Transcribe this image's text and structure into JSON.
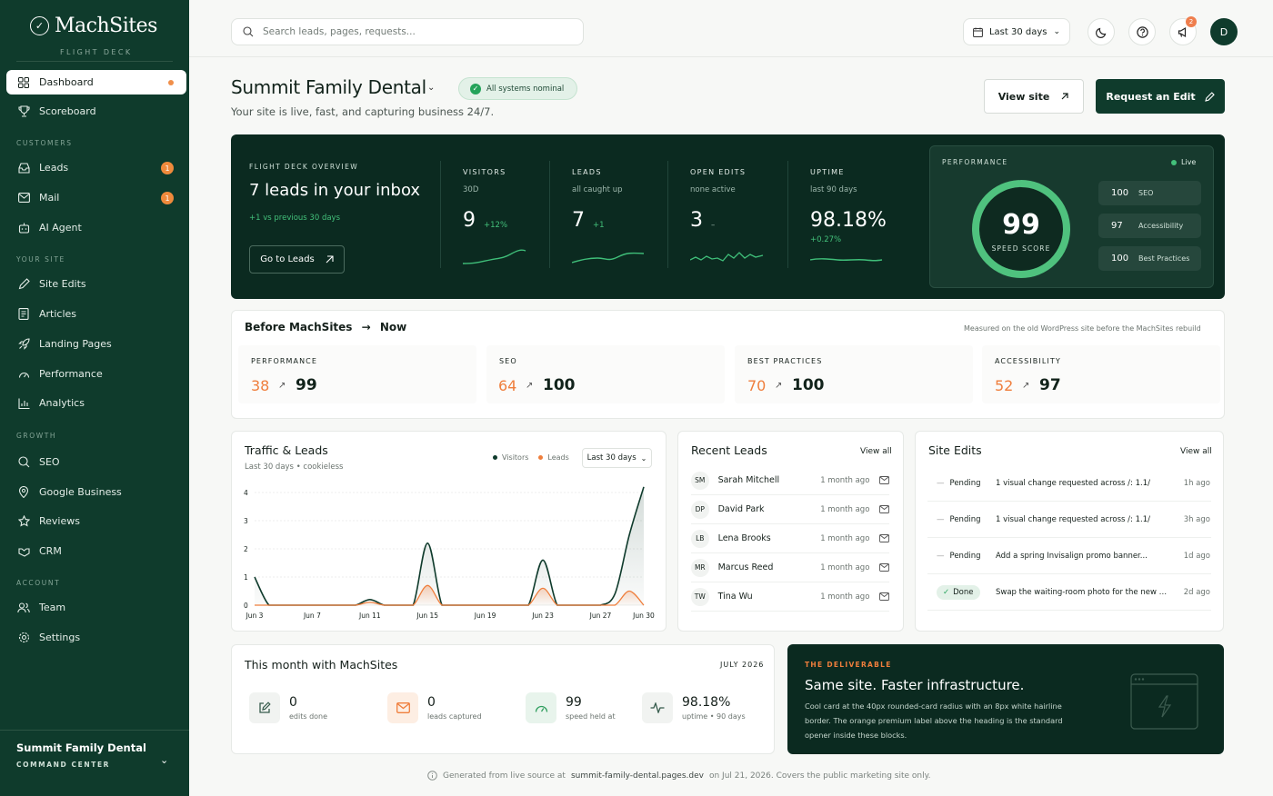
{
  "brand": {
    "name": "MachSites",
    "subtitle": "FLIGHT DECK"
  },
  "sidebar": {
    "items": [
      {
        "label": "Dashboard",
        "icon": "grid-icon"
      },
      {
        "label": "Scoreboard",
        "icon": "trophy-icon"
      },
      {
        "label": "Leads",
        "icon": "inbox-icon",
        "badge": "1"
      },
      {
        "label": "Mail",
        "icon": "mail-icon",
        "badge": "1"
      },
      {
        "label": "AI Agent",
        "icon": "bot-icon"
      },
      {
        "label": "Site Edits",
        "icon": "pencil-icon"
      },
      {
        "label": "Articles",
        "icon": "document-icon"
      },
      {
        "label": "Landing Pages",
        "icon": "rocket-icon"
      },
      {
        "label": "Performance",
        "icon": "gauge-icon"
      },
      {
        "label": "Analytics",
        "icon": "bar-chart-icon"
      },
      {
        "label": "SEO",
        "icon": "search-icon"
      },
      {
        "label": "Google Business",
        "icon": "location-pin-icon"
      },
      {
        "label": "Reviews",
        "icon": "star-icon"
      },
      {
        "label": "CRM",
        "icon": "handshake-icon"
      },
      {
        "label": "Team",
        "icon": "users-icon"
      },
      {
        "label": "Settings",
        "icon": "gear-icon"
      }
    ],
    "sections": {
      "customers": "CUSTOMERS",
      "your_site": "YOUR SITE",
      "growth": "GROWTH",
      "account": "ACCOUNT"
    },
    "footer": {
      "title": "Summit Family Dental",
      "subtitle": "COMMAND CENTER"
    }
  },
  "topbar": {
    "search_placeholder": "Search leads, pages, requests...",
    "range": "Last 30 days",
    "notifications": "2",
    "avatar": "D"
  },
  "header": {
    "title": "Summit Family Dental",
    "status": "All systems nominal",
    "subtitle": "Your site is live, fast, and capturing business 24/7.",
    "view_site": "View site",
    "request_edit": "Request an Edit"
  },
  "overview": {
    "label": "FLIGHT DECK OVERVIEW",
    "headline": "7 leads in your inbox",
    "delta": "+1 vs previous 30 days",
    "button": "Go to Leads",
    "stats": [
      {
        "title": "VISITORS",
        "sub": "30D",
        "value": "9",
        "delta": "+12%"
      },
      {
        "title": "LEADS",
        "sub": "all caught up",
        "value": "7",
        "delta": "+1"
      },
      {
        "title": "OPEN EDITS",
        "sub": "none active",
        "value": "3",
        "delta": "–"
      },
      {
        "title": "UPTIME",
        "sub": "last 90 days",
        "value": "98.18%",
        "delta": "+0.27%"
      }
    ],
    "performance": {
      "label": "PERFORMANCE",
      "live": "Live",
      "score": "99",
      "score_fraction": 0.99,
      "score_label": "SPEED SCORE",
      "rows": [
        {
          "value": "100",
          "label": "SEO"
        },
        {
          "value": "97",
          "label": "Accessibility"
        },
        {
          "value": "100",
          "label": "Best Practices"
        }
      ]
    }
  },
  "before_now": {
    "title_before": "Before MachSites",
    "title_arrow": "→",
    "title_now": "Now",
    "note": "Measured on the old WordPress site before the MachSites rebuild",
    "cells": [
      {
        "label": "PERFORMANCE",
        "before": "38",
        "after": "99"
      },
      {
        "label": "SEO",
        "before": "64",
        "after": "100"
      },
      {
        "label": "BEST PRACTICES",
        "before": "70",
        "after": "100"
      },
      {
        "label": "ACCESSIBILITY",
        "before": "52",
        "after": "97"
      }
    ]
  },
  "traffic": {
    "title": "Traffic & Leads",
    "subtitle": "Last 30 days • cookieless",
    "range": "Last 30 days",
    "colors": {
      "visitors": "#0f3b2c",
      "leads": "#ef7e3c"
    }
  },
  "chart_data": {
    "type": "line",
    "title": "Traffic & Leads",
    "x": [
      "Jun 3",
      "Jun 4",
      "Jun 5",
      "Jun 6",
      "Jun 7",
      "Jun 8",
      "Jun 9",
      "Jun 10",
      "Jun 11",
      "Jun 12",
      "Jun 13",
      "Jun 14",
      "Jun 15",
      "Jun 16",
      "Jun 17",
      "Jun 18",
      "Jun 19",
      "Jun 20",
      "Jun 21",
      "Jun 22",
      "Jun 23",
      "Jun 24",
      "Jun 25",
      "Jun 26",
      "Jun 27",
      "Jun 28",
      "Jun 29",
      "Jun 30"
    ],
    "x_ticks": [
      "Jun 3",
      "Jun 7",
      "Jun 11",
      "Jun 15",
      "Jun 19",
      "Jun 23",
      "Jun 27",
      "Jun 30"
    ],
    "y_ticks": [
      "4",
      "3",
      "2",
      "1",
      "0"
    ],
    "ylim": [
      0,
      4
    ],
    "series": [
      {
        "name": "Visitors",
        "values": [
          1,
          0,
          0,
          0,
          0,
          0,
          0,
          0,
          0.2,
          0,
          0,
          0,
          2.2,
          0,
          0,
          0,
          0,
          0,
          0,
          0,
          1.6,
          0,
          0,
          0,
          0,
          0.4,
          2.5,
          4.2
        ]
      },
      {
        "name": "Leads",
        "values": [
          0,
          0,
          0,
          0,
          0,
          0,
          0,
          0,
          0.1,
          0,
          0,
          0,
          0.7,
          0,
          0,
          0,
          0,
          0,
          0,
          0,
          0.6,
          0,
          0,
          0,
          0,
          0,
          0.5,
          0
        ]
      }
    ],
    "grid": true,
    "legend": "top-right"
  },
  "recent_leads": {
    "title": "Recent Leads",
    "view_all": "View all",
    "items": [
      {
        "initials": "SM",
        "name": "Sarah Mitchell",
        "time": "1 month ago"
      },
      {
        "initials": "DP",
        "name": "David Park",
        "time": "1 month ago"
      },
      {
        "initials": "LB",
        "name": "Lena Brooks",
        "time": "1 month ago"
      },
      {
        "initials": "MR",
        "name": "Marcus Reed",
        "time": "1 month ago"
      },
      {
        "initials": "TW",
        "name": "Tina Wu",
        "time": "1 month ago"
      }
    ]
  },
  "site_edits": {
    "title": "Site Edits",
    "view_all": "View all",
    "items": [
      {
        "status": "Pending",
        "text": "1 visual change requested across /: 1.1/",
        "time": "1h ago"
      },
      {
        "status": "Pending",
        "text": "1 visual change requested across /: 1.1/",
        "time": "3h ago"
      },
      {
        "status": "Pending",
        "text": "Add a spring Invisalign promo banner...",
        "time": "1d ago"
      },
      {
        "status": "Done",
        "text": "Swap the waiting-room photo for the new one",
        "time": "2d ago"
      }
    ]
  },
  "month": {
    "title": "This month with MachSites",
    "period": "JULY 2026",
    "items": [
      {
        "value": "0",
        "label": "edits done",
        "icon": "edit-square-icon",
        "tint": "#f1f3f1",
        "color": "#355a4b"
      },
      {
        "value": "0",
        "label": "leads captured",
        "icon": "mail-icon",
        "tint": "#fdeee3",
        "color": "#ef7e3c"
      },
      {
        "value": "99",
        "label": "speed held at",
        "icon": "gauge-icon",
        "tint": "#e8f4ec",
        "color": "#2f9e5e"
      },
      {
        "value": "98.18%",
        "label": "uptime • 90 days",
        "icon": "pulse-icon",
        "tint": "#f1f3f1",
        "color": "#355a4b"
      }
    ]
  },
  "deliverable": {
    "label": "THE DELIVERABLE",
    "title": "Same site. Faster infrastructure.",
    "body": "Cool card at the 40px rounded-card radius with an 8px white hairline border. The orange premium label above the heading is the standard opener inside these blocks."
  },
  "footer": {
    "text": "Generated from live source at",
    "link": "summit-family-dental.pages.dev",
    "rest": "on Jul 21, 2026. Covers the public marketing site only."
  }
}
